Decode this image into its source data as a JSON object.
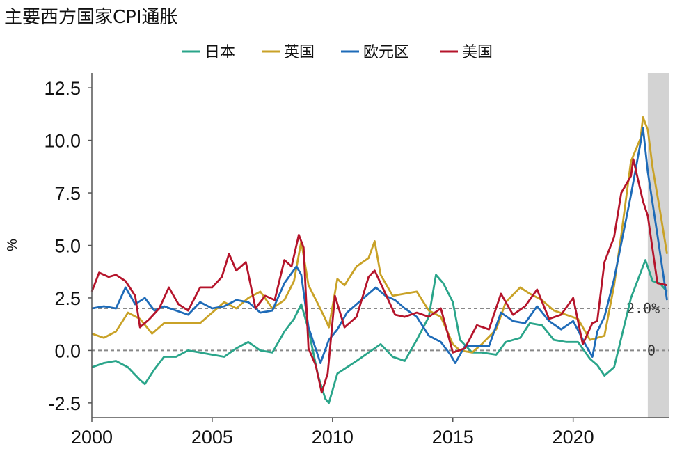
{
  "chart_data": {
    "type": "line",
    "title": "主要西方国家CPI通胀",
    "ylabel": "%",
    "xlabel": "",
    "xlim": [
      2000,
      2024
    ],
    "ylim": [
      -3.2,
      13.2
    ],
    "xticks": [
      2000,
      2005,
      2010,
      2015,
      2020
    ],
    "xtick_labels": [
      "2000",
      "2005",
      "2010",
      "2015",
      "2020"
    ],
    "yticks": [
      -2.5,
      0,
      2.5,
      5,
      7.5,
      10,
      12.5
    ],
    "ytick_labels": [
      "-2.5",
      "0.0",
      "2.5",
      "5.0",
      "7.5",
      "10.0",
      "12.5"
    ],
    "legend_position": "top-center",
    "grid": false,
    "shaded_region": {
      "x_start": 2023.1,
      "x_end": 2024.0,
      "color": "#d3d3d3"
    },
    "reference_lines": [
      {
        "y": 2.0,
        "label": "2.0%",
        "style": "dashed"
      },
      {
        "y": 0,
        "label": "0",
        "style": "dashed"
      }
    ],
    "series": [
      {
        "name": "日本",
        "color": "#2aa58a",
        "x": [
          2000.0,
          2000.5,
          2001.0,
          2001.5,
          2002.0,
          2002.2,
          2002.6,
          2003.0,
          2003.5,
          2004.0,
          2004.5,
          2005.0,
          2005.5,
          2006.0,
          2006.5,
          2007.0,
          2007.5,
          2008.0,
          2008.4,
          2008.7,
          2009.0,
          2009.4,
          2009.7,
          2009.85,
          2010.2,
          2010.6,
          2011.0,
          2011.5,
          2012.0,
          2012.5,
          2013.0,
          2013.5,
          2014.0,
          2014.3,
          2014.6,
          2015.0,
          2015.3,
          2015.8,
          2016.2,
          2016.8,
          2017.2,
          2017.8,
          2018.2,
          2018.7,
          2019.2,
          2019.7,
          2020.2,
          2020.7,
          2021.0,
          2021.3,
          2021.7,
          2022.0,
          2022.4,
          2022.8,
          2023.0,
          2023.3,
          2023.6,
          2023.9
        ],
        "values": [
          -0.8,
          -0.6,
          -0.5,
          -0.8,
          -1.4,
          -1.6,
          -0.9,
          -0.3,
          -0.3,
          0.0,
          -0.1,
          -0.2,
          -0.3,
          0.1,
          0.4,
          0.0,
          -0.1,
          0.9,
          1.5,
          2.2,
          1.0,
          -1.2,
          -2.3,
          -2.5,
          -1.1,
          -0.8,
          -0.5,
          -0.1,
          0.3,
          -0.3,
          -0.5,
          0.5,
          1.6,
          3.6,
          3.2,
          2.3,
          0.5,
          -0.1,
          -0.1,
          -0.2,
          0.4,
          0.6,
          1.3,
          1.2,
          0.5,
          0.4,
          0.4,
          -0.4,
          -0.7,
          -1.2,
          -0.8,
          0.6,
          2.5,
          3.7,
          4.3,
          3.3,
          3.2,
          2.8
        ]
      },
      {
        "name": "英国",
        "color": "#c9a227",
        "x": [
          2000.0,
          2000.5,
          2001.0,
          2001.5,
          2002.0,
          2002.5,
          2003.0,
          2003.5,
          2004.0,
          2004.5,
          2005.0,
          2005.5,
          2006.0,
          2006.5,
          2007.0,
          2007.5,
          2008.0,
          2008.4,
          2008.7,
          2009.0,
          2009.4,
          2009.7,
          2009.85,
          2010.2,
          2010.5,
          2011.0,
          2011.5,
          2011.75,
          2012.0,
          2012.5,
          2013.0,
          2013.5,
          2014.0,
          2014.5,
          2015.0,
          2015.3,
          2015.8,
          2016.2,
          2016.8,
          2017.2,
          2017.8,
          2018.2,
          2018.7,
          2019.2,
          2019.7,
          2020.2,
          2020.7,
          2021.0,
          2021.3,
          2021.7,
          2022.0,
          2022.4,
          2022.8,
          2022.9,
          2023.1,
          2023.3,
          2023.6,
          2023.9
        ],
        "values": [
          0.8,
          0.6,
          0.9,
          1.8,
          1.5,
          0.8,
          1.3,
          1.3,
          1.3,
          1.3,
          1.8,
          2.3,
          2.0,
          2.5,
          2.8,
          2.0,
          2.4,
          3.3,
          5.2,
          3.1,
          2.2,
          1.5,
          1.1,
          3.4,
          3.1,
          4.0,
          4.4,
          5.2,
          3.6,
          2.6,
          2.7,
          2.8,
          1.9,
          1.6,
          0.3,
          0.0,
          -0.1,
          0.3,
          1.0,
          2.3,
          3.0,
          2.7,
          2.4,
          1.9,
          1.7,
          1.5,
          0.5,
          0.6,
          0.7,
          3.1,
          5.5,
          9.0,
          10.1,
          11.1,
          10.5,
          8.7,
          6.7,
          4.6
        ]
      },
      {
        "name": "欧元区",
        "color": "#1e6bb8",
        "x": [
          2000.0,
          2000.5,
          2001.0,
          2001.4,
          2001.8,
          2002.2,
          2002.6,
          2003.0,
          2003.5,
          2004.0,
          2004.5,
          2005.0,
          2005.5,
          2006.0,
          2006.5,
          2007.0,
          2007.5,
          2008.0,
          2008.5,
          2008.7,
          2009.0,
          2009.5,
          2009.85,
          2010.2,
          2010.6,
          2011.0,
          2011.5,
          2011.8,
          2012.2,
          2012.6,
          2013.0,
          2013.5,
          2014.0,
          2014.5,
          2014.9,
          2015.1,
          2015.5,
          2016.0,
          2016.5,
          2017.0,
          2017.5,
          2018.0,
          2018.5,
          2019.0,
          2019.5,
          2020.0,
          2020.5,
          2020.8,
          2021.0,
          2021.3,
          2021.7,
          2022.0,
          2022.4,
          2022.8,
          2022.9,
          2023.1,
          2023.5,
          2023.9
        ],
        "values": [
          2.0,
          2.1,
          2.0,
          3.0,
          2.2,
          2.5,
          1.9,
          2.1,
          1.9,
          1.7,
          2.3,
          2.0,
          2.1,
          2.4,
          2.3,
          1.8,
          1.9,
          3.2,
          4.0,
          3.6,
          1.1,
          -0.6,
          0.5,
          1.0,
          1.8,
          2.2,
          2.7,
          3.0,
          2.6,
          2.4,
          2.0,
          1.6,
          0.7,
          0.4,
          -0.2,
          -0.6,
          0.2,
          0.2,
          0.2,
          1.8,
          1.4,
          1.3,
          2.1,
          1.4,
          1.0,
          1.4,
          0.3,
          -0.3,
          0.9,
          1.6,
          3.4,
          5.1,
          7.4,
          9.9,
          10.6,
          8.5,
          5.5,
          2.4
        ]
      },
      {
        "name": "美国",
        "color": "#b5142b",
        "x": [
          2000.0,
          2000.3,
          2000.7,
          2001.0,
          2001.4,
          2001.8,
          2002.0,
          2002.4,
          2002.8,
          2003.2,
          2003.6,
          2004.0,
          2004.5,
          2005.0,
          2005.4,
          2005.7,
          2006.0,
          2006.4,
          2006.8,
          2007.2,
          2007.6,
          2008.0,
          2008.3,
          2008.6,
          2008.8,
          2009.0,
          2009.3,
          2009.55,
          2009.8,
          2010.1,
          2010.5,
          2011.0,
          2011.5,
          2011.75,
          2012.2,
          2012.6,
          2013.0,
          2013.5,
          2014.0,
          2014.5,
          2015.0,
          2015.5,
          2016.0,
          2016.5,
          2017.0,
          2017.5,
          2018.0,
          2018.5,
          2019.0,
          2019.5,
          2020.0,
          2020.4,
          2020.8,
          2021.0,
          2021.3,
          2021.7,
          2022.0,
          2022.4,
          2022.5,
          2022.9,
          2023.1,
          2023.5,
          2023.9
        ],
        "values": [
          2.8,
          3.7,
          3.5,
          3.6,
          3.3,
          2.6,
          1.1,
          1.5,
          2.0,
          3.0,
          2.2,
          1.9,
          3.0,
          3.0,
          3.5,
          4.6,
          3.8,
          4.2,
          2.0,
          2.6,
          2.4,
          4.3,
          4.0,
          5.5,
          4.9,
          0.1,
          -0.7,
          -2.0,
          -1.1,
          2.6,
          1.1,
          1.6,
          3.5,
          3.8,
          2.7,
          1.7,
          1.6,
          1.8,
          1.6,
          2.0,
          -0.1,
          0.1,
          1.2,
          1.0,
          2.7,
          1.7,
          2.1,
          2.9,
          1.5,
          1.7,
          2.5,
          0.3,
          1.3,
          1.4,
          4.2,
          5.4,
          7.5,
          8.3,
          9.1,
          7.1,
          6.4,
          3.2,
          3.1
        ]
      }
    ]
  }
}
